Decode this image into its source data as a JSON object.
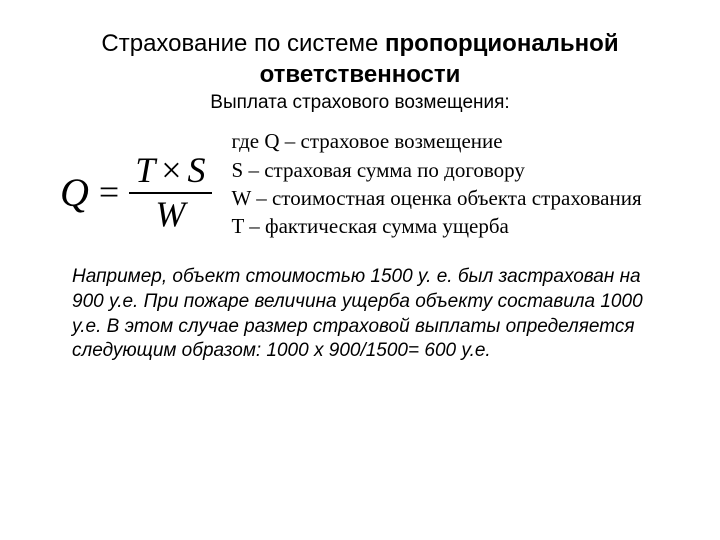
{
  "title_plain": "Страхование по системе ",
  "title_bold": "пропорциональной ответственности",
  "subtitle": "Выплата страхового возмещения:",
  "formula": {
    "lhs": "Q",
    "equals": "=",
    "num_left": "T",
    "num_times": "×",
    "num_right": "S",
    "den": "W"
  },
  "definitions": {
    "q": "где  Q – страховое возмещение",
    "s": "S – страховая сумма по договору",
    "w": "W – стоимостная оценка объекта страхования",
    "t": "T – фактическая сумма ущерба"
  },
  "example": "Например, объект стоимостью 1500 у. е. был застрахован на 900 у.е. При пожаре величина ущерба объекту составила 1000 у.е. В этом случае размер страховой выплаты определяется следующим образом: 1000 х 900/1500= 600 у.е.",
  "colors": {
    "background": "#ffffff",
    "text": "#000000"
  },
  "fonts": {
    "title_size": 24,
    "subtitle_size": 19,
    "formula_size": 36,
    "defs_size": 21,
    "example_size": 19
  }
}
